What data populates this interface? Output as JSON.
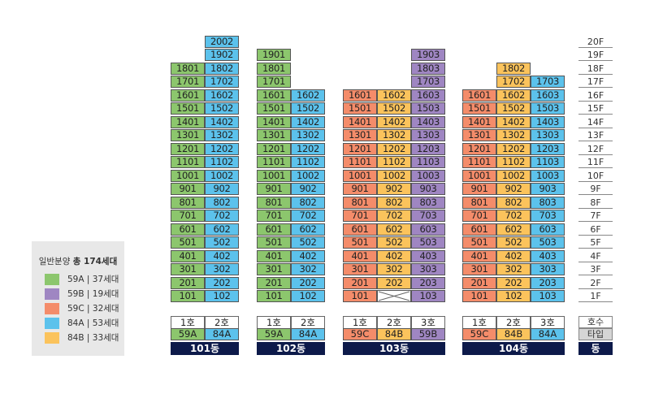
{
  "colors": {
    "59A": "#8cc66d",
    "59B": "#9f86c2",
    "59C": "#f48c6a",
    "84A": "#5cc2ec",
    "84B": "#fbc35c",
    "empty": "#ffffff",
    "dong_bar": "#0d1a4a",
    "type_gray": "#d5d5d5"
  },
  "legend": {
    "title_prefix": "일반분양",
    "title_total": "총 174세대",
    "items": [
      {
        "type": "59A",
        "label": "59A | 37세대"
      },
      {
        "type": "59B",
        "label": "59B | 19세대"
      },
      {
        "type": "59C",
        "label": "59C | 32세대"
      },
      {
        "type": "84A",
        "label": "84A | 53세대"
      },
      {
        "type": "84B",
        "label": "84B | 33세대"
      }
    ]
  },
  "floor_axis": {
    "header": "호수",
    "type_label": "타입",
    "dong_label": "동",
    "floors": [
      "20F",
      "19F",
      "18F",
      "17F",
      "16F",
      "15F",
      "14F",
      "13F",
      "12F",
      "11F",
      "10F",
      "9F",
      "8F",
      "7F",
      "6F",
      "5F",
      "4F",
      "3F",
      "2F",
      "1F"
    ]
  },
  "buildings": [
    {
      "name": "101동",
      "lines": [
        {
          "label": "1호",
          "type": "59A",
          "top": 18,
          "empty": []
        },
        {
          "label": "2호",
          "type": "84A",
          "top": 20,
          "empty": []
        }
      ]
    },
    {
      "name": "102동",
      "lines": [
        {
          "label": "1호",
          "type": "59A",
          "top": 19,
          "empty": []
        },
        {
          "label": "2호",
          "type": "84A",
          "top": 16,
          "empty": []
        }
      ]
    },
    {
      "name": "103동",
      "lines": [
        {
          "label": "1호",
          "type": "59C",
          "top": 16,
          "empty": []
        },
        {
          "label": "2호",
          "type": "84B",
          "top": 16,
          "empty": [
            1
          ]
        },
        {
          "label": "3호",
          "type": "59B",
          "top": 19,
          "empty": []
        }
      ]
    },
    {
      "name": "104동",
      "lines": [
        {
          "label": "1호",
          "type": "59C",
          "top": 16,
          "empty": []
        },
        {
          "label": "2호",
          "type": "84B",
          "top": 18,
          "empty": []
        },
        {
          "label": "3호",
          "type": "84A",
          "top": 17,
          "empty": []
        }
      ]
    }
  ]
}
